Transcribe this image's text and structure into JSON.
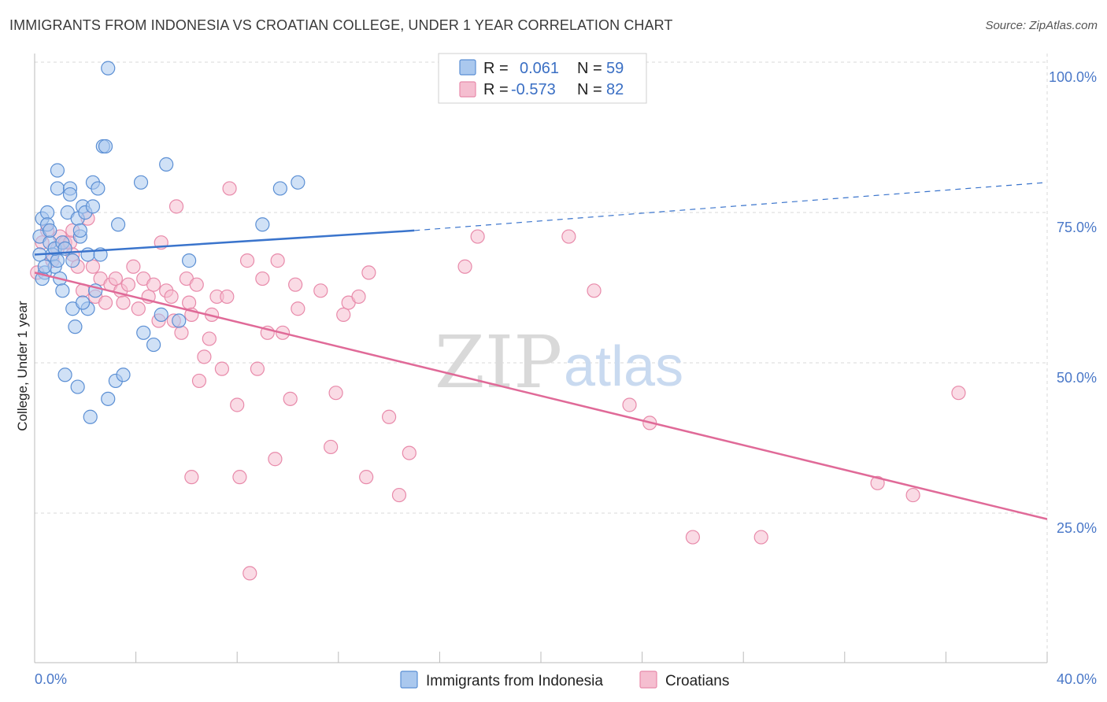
{
  "title": "IMMIGRANTS FROM INDONESIA VS CROATIAN COLLEGE, UNDER 1 YEAR CORRELATION CHART",
  "source": "Source: ZipAtlas.com",
  "watermark": {
    "part1": "ZIP",
    "part2": "atlas"
  },
  "legend": {
    "rows": [
      {
        "r_label": "R =",
        "r_value": "0.061",
        "n_label": "N =",
        "n_value": "59"
      },
      {
        "r_label": "R =",
        "r_value": "-0.573",
        "n_label": "N =",
        "n_value": "82"
      }
    ]
  },
  "colors": {
    "blue_fill": "#aac8ee",
    "blue_stroke": "#5b8fd4",
    "blue_line": "#3a74cc",
    "pink_fill": "#f5bed0",
    "pink_stroke": "#e88aaa",
    "pink_line": "#e06a98",
    "grid": "#d8d8d8",
    "axis_text": "#4a78c8"
  },
  "chart_data": {
    "type": "scatter",
    "title": "IMMIGRANTS FROM INDONESIA VS CROATIAN COLLEGE, UNDER 1 YEAR CORRELATION CHART",
    "xlabel": "",
    "ylabel": "College, Under 1 year",
    "xlim": [
      0,
      40
    ],
    "ylim": [
      0,
      105
    ],
    "x_tick_labels": [
      "0.0%",
      "40.0%"
    ],
    "y_ticks": [
      25,
      50,
      75,
      100
    ],
    "y_tick_labels": [
      "25.0%",
      "50.0%",
      "75.0%",
      "100.0%"
    ],
    "grid": true,
    "series": [
      {
        "name": "Immigrants from Indonesia",
        "R": 0.061,
        "N": 59,
        "trend": {
          "x0": 0,
          "y0": 68.0,
          "x1": 15,
          "y1": 72.0,
          "dash_to_x": 40,
          "dash_to_y": 80.0
        },
        "points": [
          [
            0.2,
            68
          ],
          [
            0.2,
            71
          ],
          [
            0.3,
            74
          ],
          [
            0.4,
            65
          ],
          [
            0.5,
            75
          ],
          [
            0.5,
            73
          ],
          [
            0.6,
            70
          ],
          [
            0.7,
            68
          ],
          [
            0.8,
            66
          ],
          [
            0.9,
            67
          ],
          [
            0.9,
            82
          ],
          [
            0.9,
            79
          ],
          [
            0.8,
            69
          ],
          [
            1.0,
            64
          ],
          [
            1.1,
            70
          ],
          [
            1.1,
            62
          ],
          [
            1.2,
            69
          ],
          [
            1.3,
            75
          ],
          [
            1.4,
            79
          ],
          [
            1.4,
            78
          ],
          [
            1.5,
            67
          ],
          [
            1.5,
            59
          ],
          [
            1.6,
            56
          ],
          [
            1.7,
            74
          ],
          [
            1.7,
            46
          ],
          [
            1.8,
            71
          ],
          [
            1.8,
            72
          ],
          [
            1.9,
            76
          ],
          [
            2.0,
            75
          ],
          [
            2.1,
            68
          ],
          [
            2.1,
            59
          ],
          [
            2.2,
            41
          ],
          [
            2.3,
            76
          ],
          [
            2.3,
            80
          ],
          [
            2.4,
            62
          ],
          [
            2.5,
            79
          ],
          [
            2.6,
            68
          ],
          [
            2.7,
            86
          ],
          [
            2.8,
            86
          ],
          [
            2.9,
            44
          ],
          [
            2.9,
            99
          ],
          [
            3.2,
            47
          ],
          [
            3.3,
            73
          ],
          [
            3.5,
            48
          ],
          [
            4.2,
            80
          ],
          [
            4.3,
            55
          ],
          [
            4.7,
            53
          ],
          [
            5.0,
            58
          ],
          [
            5.2,
            83
          ],
          [
            5.7,
            57
          ],
          [
            6.1,
            67
          ],
          [
            9.0,
            73
          ],
          [
            9.7,
            79
          ],
          [
            10.4,
            80
          ],
          [
            1.2,
            48
          ],
          [
            0.3,
            64
          ],
          [
            0.6,
            72
          ],
          [
            1.9,
            60
          ],
          [
            0.4,
            66
          ]
        ]
      },
      {
        "name": "Croatians",
        "R": -0.573,
        "N": 82,
        "trend": {
          "x0": 0,
          "y0": 65.0,
          "x1": 40,
          "y1": 24.0
        },
        "points": [
          [
            0.1,
            65
          ],
          [
            0.3,
            70
          ],
          [
            0.5,
            72
          ],
          [
            0.7,
            67
          ],
          [
            0.9,
            69
          ],
          [
            1.0,
            71
          ],
          [
            1.2,
            70
          ],
          [
            1.4,
            70
          ],
          [
            1.5,
            68
          ],
          [
            1.7,
            66
          ],
          [
            1.9,
            62
          ],
          [
            2.1,
            74
          ],
          [
            2.3,
            66
          ],
          [
            2.4,
            61
          ],
          [
            2.6,
            64
          ],
          [
            2.8,
            60
          ],
          [
            3.0,
            63
          ],
          [
            3.2,
            64
          ],
          [
            3.4,
            62
          ],
          [
            3.5,
            60
          ],
          [
            3.7,
            63
          ],
          [
            3.9,
            66
          ],
          [
            4.1,
            59
          ],
          [
            4.3,
            64
          ],
          [
            4.5,
            61
          ],
          [
            4.7,
            63
          ],
          [
            4.9,
            57
          ],
          [
            5.0,
            70
          ],
          [
            5.2,
            62
          ],
          [
            5.4,
            61
          ],
          [
            5.5,
            57
          ],
          [
            5.6,
            76
          ],
          [
            5.8,
            55
          ],
          [
            6.0,
            64
          ],
          [
            6.1,
            60
          ],
          [
            6.2,
            58
          ],
          [
            6.4,
            63
          ],
          [
            6.5,
            47
          ],
          [
            6.7,
            51
          ],
          [
            6.9,
            54
          ],
          [
            7.0,
            58
          ],
          [
            7.2,
            61
          ],
          [
            7.4,
            49
          ],
          [
            7.6,
            61
          ],
          [
            7.7,
            79
          ],
          [
            8.0,
            43
          ],
          [
            8.1,
            31
          ],
          [
            8.4,
            67
          ],
          [
            8.5,
            15
          ],
          [
            8.8,
            49
          ],
          [
            9.0,
            64
          ],
          [
            9.2,
            55
          ],
          [
            9.5,
            34
          ],
          [
            9.6,
            67
          ],
          [
            9.8,
            55
          ],
          [
            10.1,
            44
          ],
          [
            10.3,
            63
          ],
          [
            10.4,
            59
          ],
          [
            11.3,
            62
          ],
          [
            11.7,
            36
          ],
          [
            11.9,
            45
          ],
          [
            12.2,
            58
          ],
          [
            12.4,
            60
          ],
          [
            12.8,
            61
          ],
          [
            13.1,
            31
          ],
          [
            13.2,
            65
          ],
          [
            14.0,
            41
          ],
          [
            14.4,
            28
          ],
          [
            14.8,
            35
          ],
          [
            17.0,
            66
          ],
          [
            17.5,
            71
          ],
          [
            21.1,
            71
          ],
          [
            22.1,
            62
          ],
          [
            23.5,
            43
          ],
          [
            24.3,
            40
          ],
          [
            26.0,
            21
          ],
          [
            28.7,
            21
          ],
          [
            33.3,
            30
          ],
          [
            34.7,
            28
          ],
          [
            36.5,
            45
          ],
          [
            6.2,
            31
          ],
          [
            1.5,
            72
          ]
        ]
      }
    ]
  },
  "bottom_legend": {
    "items": [
      "Immigrants from Indonesia",
      "Croatians"
    ]
  }
}
